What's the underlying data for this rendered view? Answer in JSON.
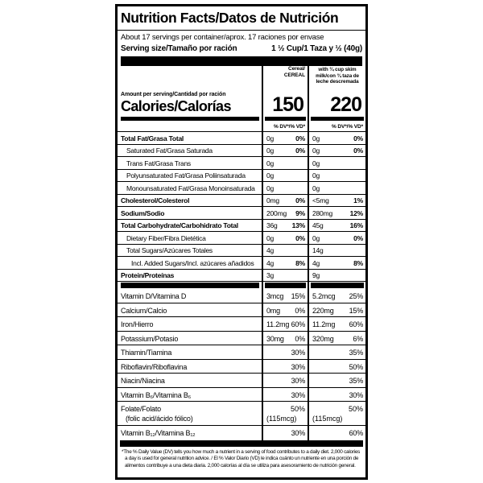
{
  "colors": {
    "text": "#000000",
    "background": "#ffffff"
  },
  "label": {
    "title": "Nutrition Facts/Datos de Nutrición",
    "servings_per_container": "About 17 servings per container/aprox. 17 raciones por envase",
    "serving_size": {
      "label": "Serving size/Tamaño por ración",
      "value": "1 ½ Cup/1 Taza y ½ (40g)"
    },
    "amount_per_serving": "Amount per serving/Cantidad por ración",
    "calories_word": "Calories/Calorías",
    "dv_header": "% DV*/% VD*",
    "columns": [
      {
        "header_line1": "Cereal/",
        "header_line2": "CEREAL",
        "calories": "150"
      },
      {
        "header": "with ¾ cup skim milk/con ¾ taza de leche descremada",
        "calories": "220"
      }
    ],
    "rows": [
      {
        "name": "Total Fat/Grasa Total",
        "a1": "0g",
        "d1": "0%",
        "a2": "0g",
        "d2": "0%"
      },
      {
        "name": "Saturated Fat/Grasa Saturada",
        "a1": "0g",
        "d1": "0%",
        "a2": "0g",
        "d2": "0%"
      },
      {
        "name": "Trans Fat/Grasa Trans",
        "a1": "0g",
        "d1": "",
        "a2": "0g",
        "d2": ""
      },
      {
        "name": "Polyunsaturated Fat/Grasa Poliinsaturada",
        "a1": "0g",
        "d1": "",
        "a2": "0g",
        "d2": ""
      },
      {
        "name": "Monounsaturated Fat/Grasa Monoinsaturada",
        "a1": "0g",
        "d1": "",
        "a2": "0g",
        "d2": ""
      },
      {
        "name": "Cholesterol/Colesterol",
        "a1": "0mg",
        "d1": "0%",
        "a2": "<5mg",
        "d2": "1%"
      },
      {
        "name": "Sodium/Sodio",
        "a1": "200mg",
        "d1": "9%",
        "a2": "280mg",
        "d2": "12%"
      },
      {
        "name": "Total Carbohydrate/Carbohidrato Total",
        "a1": "36g",
        "d1": "13%",
        "a2": "45g",
        "d2": "16%"
      },
      {
        "name": "Dietary Fiber/Fibra Dietética",
        "a1": "0g",
        "d1": "0%",
        "a2": "0g",
        "d2": "0%"
      },
      {
        "name": "Total Sugars/Azúcares Totales",
        "a1": "4g",
        "d1": "",
        "a2": "14g",
        "d2": ""
      },
      {
        "name": "Incl. Added Sugars/Incl. azúcares añadidos",
        "a1": "4g",
        "d1": "8%",
        "a2": "4g",
        "d2": "8%"
      },
      {
        "name": "Protein/Proteínas",
        "a1": "3g",
        "d1": "",
        "a2": "9g",
        "d2": ""
      }
    ],
    "vitamins": [
      {
        "name": "Vitamin D/Vitamina D",
        "a1": "3mcg",
        "d1": "15%",
        "a2": "5.2mcg",
        "d2": "25%"
      },
      {
        "name": "Calcium/Calcio",
        "a1": "0mg",
        "d1": "0%",
        "a2": "220mg",
        "d2": "15%"
      },
      {
        "name": "Iron/Hierro",
        "a1": "11.2mg",
        "d1": "60%",
        "a2": "11.2mg",
        "d2": "60%"
      },
      {
        "name": "Potassium/Potasio",
        "a1": "30mg",
        "d1": "0%",
        "a2": "320mg",
        "d2": "6%"
      },
      {
        "name": "Thiamin/Tiamina",
        "a1": "",
        "d1": "30%",
        "a2": "",
        "d2": "35%"
      },
      {
        "name": "Riboflavin/Riboflavina",
        "a1": "",
        "d1": "30%",
        "a2": "",
        "d2": "50%"
      },
      {
        "name": "Niacin/Niacina",
        "a1": "",
        "d1": "30%",
        "a2": "",
        "d2": "35%"
      },
      {
        "name": "Vitamin B₆/Vitamina B₆",
        "a1": "",
        "d1": "30%",
        "a2": "",
        "d2": "30%"
      },
      {
        "name": "Folate/Folato",
        "name2": "(folic acid/ácido fólico)",
        "a1": "(115mcg)",
        "d1": "50%",
        "a2": "(115mcg)",
        "d2": "50%"
      },
      {
        "name": "Vitamin B₁₂/Vitamina B₁₂",
        "a1": "",
        "d1": "30%",
        "a2": "",
        "d2": "60%"
      }
    ],
    "footnote": "*The % Daily Value (DV) tells you how much a nutrient in a serving of food contributes to a daily diet. 2,000 calories a day is used for general nutrition advice. / El % Valor Diario (VD) le indica cuánto un nutriente en una porción de alimentos contribuye a una dieta diaria. 2,000 calorías al día se utiliza para asesoramiento de nutrición general."
  }
}
